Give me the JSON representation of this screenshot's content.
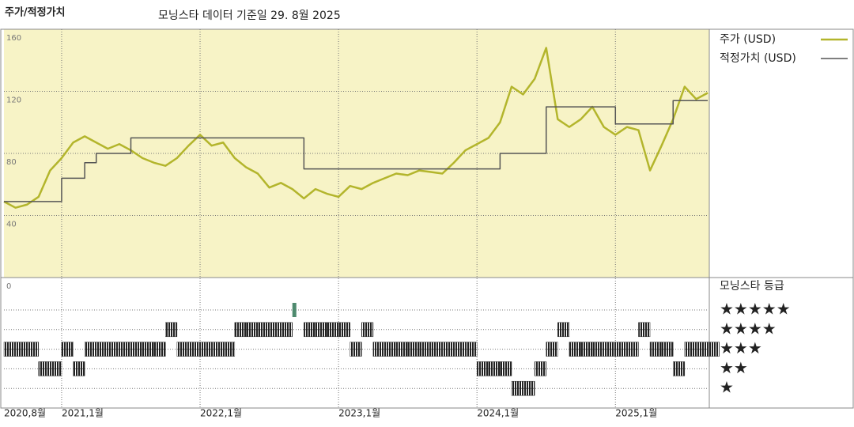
{
  "chart_data": [
    {
      "type": "line",
      "title": "주가/적정가치",
      "subtitle": "모닝스타 데이터 기준일 29. 8월 2025",
      "x": [
        "2020-08",
        "2020-09",
        "2020-10",
        "2020-11",
        "2020-12",
        "2021-01",
        "2021-02",
        "2021-03",
        "2021-04",
        "2021-05",
        "2021-06",
        "2021-07",
        "2021-08",
        "2021-09",
        "2021-10",
        "2021-11",
        "2021-12",
        "2022-01",
        "2022-02",
        "2022-03",
        "2022-04",
        "2022-05",
        "2022-06",
        "2022-07",
        "2022-08",
        "2022-09",
        "2022-10",
        "2022-11",
        "2022-12",
        "2023-01",
        "2023-02",
        "2023-03",
        "2023-04",
        "2023-05",
        "2023-06",
        "2023-07",
        "2023-08",
        "2023-09",
        "2023-10",
        "2023-11",
        "2023-12",
        "2024-01",
        "2024-02",
        "2024-03",
        "2024-04",
        "2024-05",
        "2024-06",
        "2024-07",
        "2024-08",
        "2024-09",
        "2024-10",
        "2024-11",
        "2024-12",
        "2025-01",
        "2025-02",
        "2025-03",
        "2025-04",
        "2025-05",
        "2025-06",
        "2025-07",
        "2025-08",
        "2025-09"
      ],
      "series": [
        {
          "name": "주가 (USD)",
          "color": "#b3b52c",
          "values": [
            49,
            45,
            47,
            52,
            69,
            77,
            87,
            91,
            87,
            83,
            86,
            82,
            77,
            74,
            72,
            77,
            85,
            92,
            85,
            87,
            77,
            71,
            67,
            58,
            61,
            57,
            51,
            57,
            54,
            52,
            59,
            57,
            61,
            64,
            67,
            66,
            69,
            68,
            67,
            74,
            82,
            86,
            90,
            100,
            123,
            118,
            128,
            148,
            102,
            97,
            102,
            110,
            97,
            92,
            97,
            95,
            69,
            85,
            102,
            123,
            115,
            119
          ]
        },
        {
          "name": "적정가치 (USD)",
          "color": "#555555",
          "step": true,
          "values": [
            49,
            49,
            49,
            49,
            49,
            64,
            64,
            74,
            80,
            80,
            80,
            90,
            90,
            90,
            90,
            90,
            90,
            90,
            90,
            90,
            90,
            90,
            90,
            90,
            90,
            90,
            70,
            70,
            70,
            70,
            70,
            70,
            70,
            70,
            70,
            70,
            70,
            70,
            70,
            70,
            70,
            70,
            70,
            80,
            80,
            80,
            80,
            110,
            110,
            110,
            110,
            110,
            110,
            99,
            99,
            99,
            99,
            99,
            114,
            114,
            114,
            114
          ]
        }
      ],
      "xlim": [
        "2020-08",
        "2025-09"
      ],
      "xticks": [
        {
          "value": "2020-08",
          "label": "2020,8월"
        },
        {
          "value": "2021-01",
          "label": "2021,1월"
        },
        {
          "value": "2022-01",
          "label": "2022,1월"
        },
        {
          "value": "2023-01",
          "label": "2023,1월"
        },
        {
          "value": "2024-01",
          "label": "2024,1월"
        },
        {
          "value": "2025-01",
          "label": "2025,1월"
        }
      ],
      "ylim": [
        0,
        160
      ],
      "yticks": [
        0,
        40,
        80,
        120,
        160
      ],
      "grid": true,
      "background": "#f7f3c6"
    },
    {
      "type": "rating",
      "title": "모닝스타 등급",
      "x": [
        "2020-08",
        "2020-09",
        "2020-10",
        "2020-11",
        "2020-12",
        "2021-01",
        "2021-02",
        "2021-03",
        "2021-04",
        "2021-05",
        "2021-06",
        "2021-07",
        "2021-08",
        "2021-09",
        "2021-10",
        "2021-11",
        "2021-12",
        "2022-01",
        "2022-02",
        "2022-03",
        "2022-04",
        "2022-05",
        "2022-06",
        "2022-07",
        "2022-08",
        "2022-09",
        "2022-10",
        "2022-11",
        "2022-12",
        "2023-01",
        "2023-02",
        "2023-03",
        "2023-04",
        "2023-05",
        "2023-06",
        "2023-07",
        "2023-08",
        "2023-09",
        "2023-10",
        "2023-11",
        "2023-12",
        "2024-01",
        "2024-02",
        "2024-03",
        "2024-04",
        "2024-05",
        "2024-06",
        "2024-07",
        "2024-08",
        "2024-09",
        "2024-10",
        "2024-11",
        "2024-12",
        "2025-01",
        "2025-02",
        "2025-03",
        "2025-04",
        "2025-05",
        "2025-06",
        "2025-07",
        "2025-08",
        "2025-09"
      ],
      "values": [
        3,
        3,
        3,
        2,
        2,
        3,
        2,
        3,
        3,
        3,
        3,
        3,
        3,
        3,
        4,
        3,
        3,
        3,
        3,
        3,
        4,
        4,
        4,
        4,
        4,
        5,
        4,
        4,
        4,
        4,
        3,
        4,
        3,
        3,
        3,
        3,
        3,
        3,
        3,
        3,
        3,
        2,
        2,
        2,
        1,
        1,
        2,
        3,
        4,
        3,
        3,
        3,
        3,
        3,
        3,
        4,
        3,
        3,
        2,
        3,
        3,
        3
      ],
      "color": "#333333",
      "highlight_color": "#4e8a6e",
      "levels": [
        {
          "value": 5,
          "label": "★★★★★"
        },
        {
          "value": 4,
          "label": "★★★★"
        },
        {
          "value": 3,
          "label": "★★★"
        },
        {
          "value": 2,
          "label": "★★"
        },
        {
          "value": 1,
          "label": "★"
        }
      ]
    }
  ]
}
